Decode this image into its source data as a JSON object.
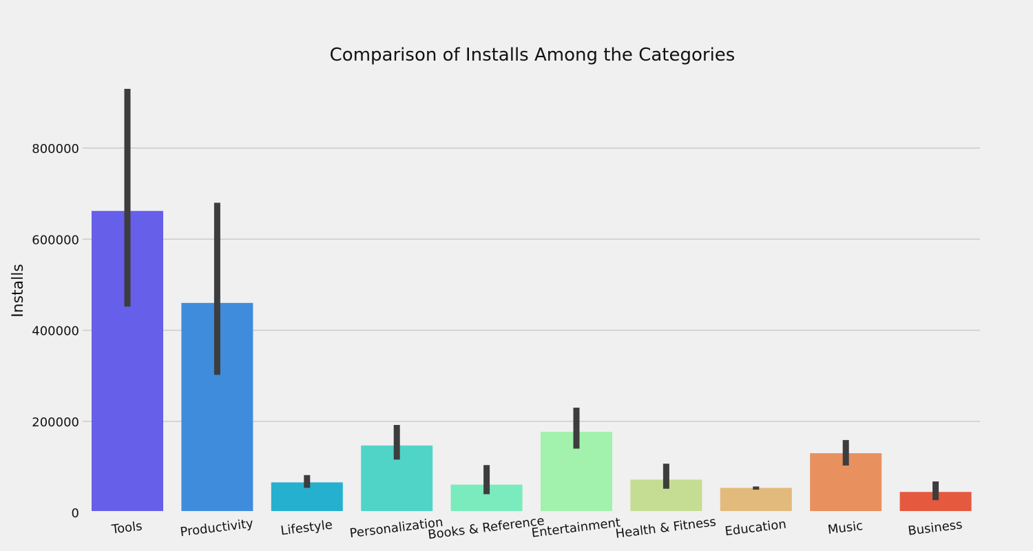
{
  "chart_data": {
    "type": "bar",
    "title": "Comparison of Installs Among the Categories",
    "xlabel": "",
    "ylabel": "Installs",
    "categories": [
      "Tools",
      "Productivity",
      "Lifestyle",
      "Personalization",
      "Books & Reference",
      "Entertainment",
      "Health & Fitness",
      "Education",
      "Music",
      "Business"
    ],
    "values": [
      662000,
      460000,
      66000,
      147000,
      61000,
      177000,
      72000,
      54000,
      130000,
      45000
    ],
    "error_bars": [
      [
        452000,
        930000
      ],
      [
        302000,
        680000
      ],
      [
        54000,
        82000
      ],
      [
        116000,
        192000
      ],
      [
        40000,
        104000
      ],
      [
        140000,
        230000
      ],
      [
        52000,
        107000
      ],
      [
        50000,
        57000
      ],
      [
        103000,
        159000
      ],
      [
        27000,
        68000
      ]
    ],
    "colors": [
      "#665fe9",
      "#3f8cdc",
      "#26b0d0",
      "#50d4c8",
      "#7aebbc",
      "#a2f1ac",
      "#c5dd93",
      "#e2ba7b",
      "#e8915f",
      "#e55a3f"
    ],
    "error_color": "#3d3d3d",
    "yticks": [
      0,
      200000,
      400000,
      600000,
      800000
    ],
    "ylim": [
      0,
      930000
    ],
    "grid": true,
    "legend": "none"
  }
}
